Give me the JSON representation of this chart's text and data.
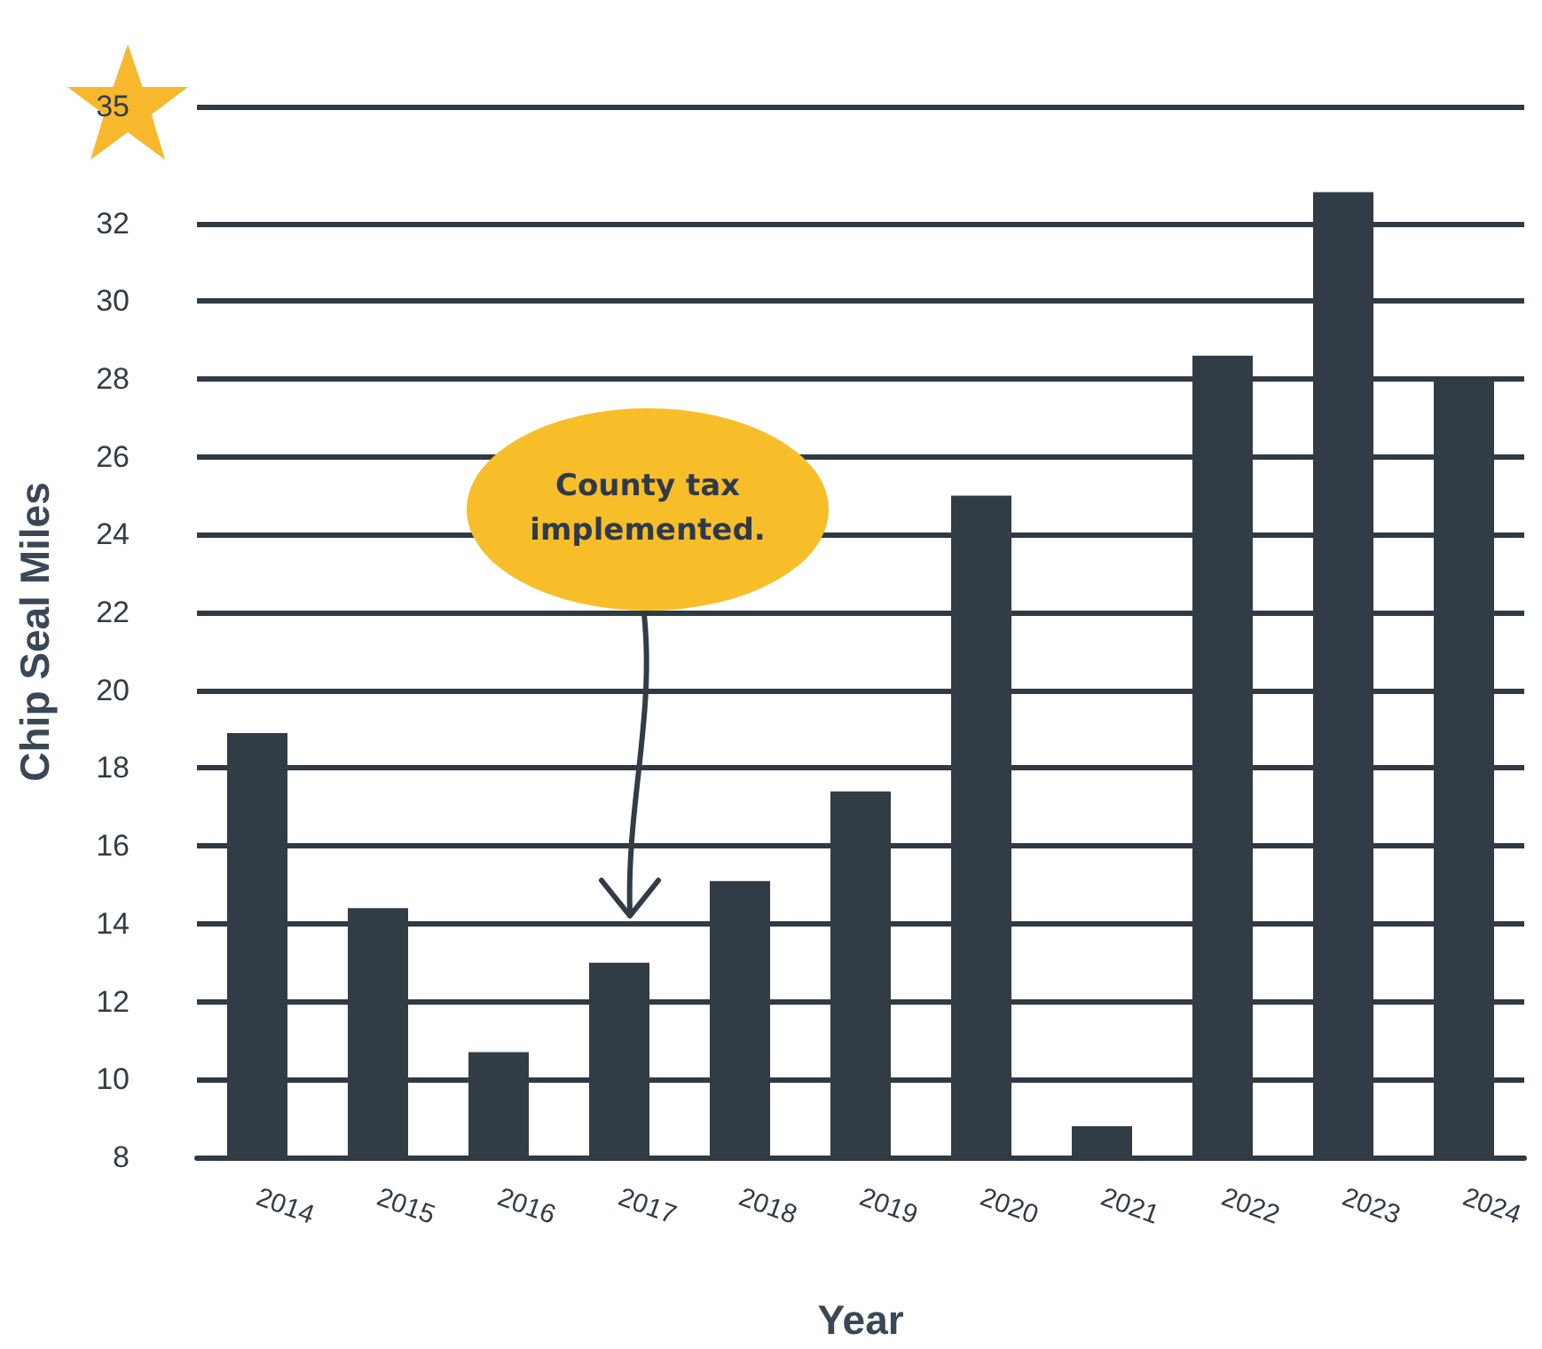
{
  "chart_data": {
    "type": "bar",
    "xlabel": "Year",
    "ylabel": "Chip Seal Miles",
    "categories": [
      "2014",
      "2015",
      "2016",
      "2017",
      "2018",
      "2019",
      "2020",
      "2021",
      "2022",
      "2023",
      "2024"
    ],
    "values": [
      18.9,
      14.4,
      10.7,
      13.0,
      15.1,
      17.4,
      25.0,
      8.8,
      28.6,
      32.8,
      28.0
    ],
    "color": "#323c47",
    "ylim": [
      8,
      35
    ],
    "yticks": [
      8,
      10,
      12,
      14,
      16,
      18,
      20,
      22,
      24,
      26,
      28,
      30,
      32,
      35
    ],
    "grid": "y",
    "annotations": [
      "County tax implemented."
    ]
  }
}
